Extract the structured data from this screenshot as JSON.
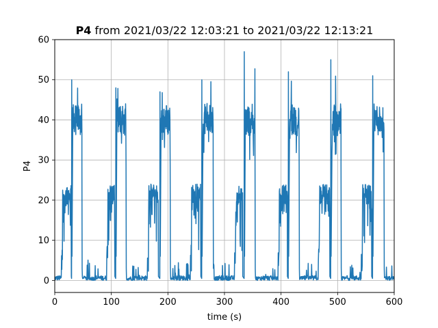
{
  "chart_data": {
    "type": "line",
    "title_bold": "P4",
    "title_rest": "from 2021/03/22 12:03:21 to 2021/03/22 12:13:21",
    "xlabel": "time (s)",
    "ylabel": "P4",
    "xlim": [
      0,
      600
    ],
    "ylim": [
      -3,
      60
    ],
    "xticks": [
      0,
      100,
      200,
      300,
      400,
      500,
      600
    ],
    "yticks": [
      0,
      10,
      20,
      30,
      40,
      50,
      60
    ],
    "grid": true,
    "line_color": "#1f77b4",
    "cycles": [
      {
        "start": 0,
        "low_end": 12,
        "mid_start": 14,
        "mid_end": 29,
        "spike": 30,
        "high_start": 32,
        "high_end": 48,
        "high_peak": 50
      },
      {
        "start": 70,
        "low_end": 92,
        "mid_start": 94,
        "mid_end": 106,
        "spike": 108,
        "high_start": 110,
        "high_end": 126,
        "high_peak": 48
      },
      {
        "start": 140,
        "low_end": 164,
        "mid_start": 166,
        "mid_end": 183,
        "spike": 186,
        "high_start": 188,
        "high_end": 204,
        "high_peak": 47
      },
      {
        "start": 215,
        "low_end": 240,
        "mid_start": 242,
        "mid_end": 258,
        "spike": 260,
        "high_start": 262,
        "high_end": 280,
        "high_peak": 50
      },
      {
        "start": 290,
        "low_end": 318,
        "mid_start": 320,
        "mid_end": 332,
        "spike": 335,
        "high_start": 337,
        "high_end": 354,
        "high_peak": 57
      },
      {
        "start": 365,
        "low_end": 395,
        "mid_start": 397,
        "mid_end": 411,
        "spike": 413,
        "high_start": 415,
        "high_end": 432,
        "high_peak": 52
      },
      {
        "start": 440,
        "low_end": 466,
        "mid_start": 468,
        "mid_end": 486,
        "spike": 488,
        "high_start": 490,
        "high_end": 506,
        "high_peak": 55
      },
      {
        "start": 515,
        "low_end": 542,
        "mid_start": 544,
        "mid_end": 560,
        "spike": 562,
        "high_start": 564,
        "high_end": 582,
        "high_peak": 51
      }
    ]
  }
}
